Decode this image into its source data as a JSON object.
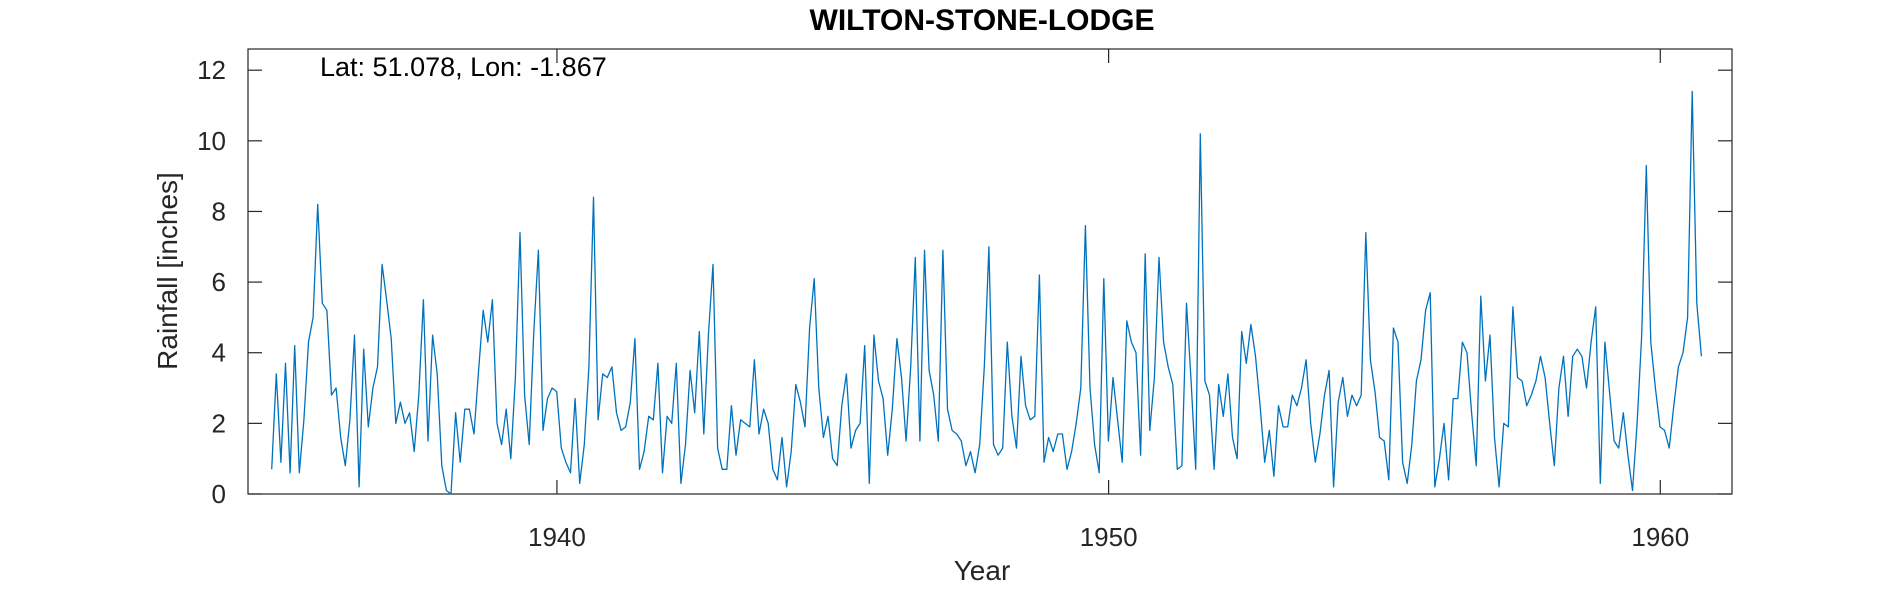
{
  "chart_data": {
    "type": "line",
    "title": "WILTON-STONE-LODGE",
    "xlabel": "Year",
    "ylabel": "Rainfall [inches]",
    "annotation": "Lat: 51.078, Lon: -1.867",
    "xlim": [
      1934.4,
      1961.3
    ],
    "ylim": [
      0,
      12.6
    ],
    "xticks": [
      1940,
      1950,
      1960
    ],
    "yticks": [
      0,
      2,
      4,
      6,
      8,
      10,
      12
    ],
    "grid": false,
    "box": true,
    "line_color": "#0072BD",
    "series": [
      {
        "x_start": 1934.83,
        "x_step": 0.08333,
        "values": [
          0.7,
          3.4,
          0.9,
          3.7,
          0.6,
          4.2,
          0.6,
          2.1,
          4.3,
          5.0,
          8.2,
          5.4,
          5.2,
          2.8,
          3.0,
          1.6,
          0.8,
          2.1,
          4.5,
          0.2,
          4.1,
          1.9,
          3.0,
          3.6,
          6.5,
          5.5,
          4.4,
          2.0,
          2.6,
          2.0,
          2.3,
          1.2,
          2.8,
          5.5,
          1.5,
          4.5,
          3.4,
          0.8,
          0.1,
          0.0,
          2.3,
          0.9,
          2.4,
          2.4,
          1.7,
          3.5,
          5.2,
          4.3,
          5.5,
          2.0,
          1.4,
          2.4,
          1.0,
          3.3,
          7.4,
          2.8,
          1.4,
          4.6,
          6.9,
          1.8,
          2.7,
          3.0,
          2.9,
          1.3,
          0.9,
          0.6,
          2.7,
          0.3,
          1.4,
          3.6,
          8.4,
          2.1,
          3.4,
          3.3,
          3.6,
          2.3,
          1.8,
          1.9,
          2.6,
          4.4,
          0.7,
          1.2,
          2.2,
          2.1,
          3.7,
          0.6,
          2.2,
          2.0,
          3.7,
          0.3,
          1.4,
          3.5,
          2.3,
          4.6,
          1.7,
          4.5,
          6.5,
          1.3,
          0.7,
          0.7,
          2.5,
          1.1,
          2.1,
          2.0,
          1.9,
          3.8,
          1.7,
          2.4,
          2.0,
          0.7,
          0.4,
          1.6,
          0.2,
          1.2,
          3.1,
          2.6,
          1.9,
          4.7,
          6.1,
          3.0,
          1.6,
          2.2,
          1.0,
          0.8,
          2.5,
          3.4,
          1.3,
          1.8,
          2.0,
          4.2,
          0.3,
          4.5,
          3.2,
          2.7,
          1.1,
          2.4,
          4.4,
          3.3,
          1.5,
          3.6,
          6.7,
          1.5,
          6.9,
          3.5,
          2.8,
          1.5,
          6.9,
          2.4,
          1.8,
          1.7,
          1.5,
          0.8,
          1.2,
          0.6,
          1.4,
          3.6,
          7.0,
          1.4,
          1.1,
          1.3,
          4.3,
          2.2,
          1.3,
          3.9,
          2.5,
          2.1,
          2.2,
          6.2,
          0.9,
          1.6,
          1.2,
          1.7,
          1.7,
          0.7,
          1.2,
          2.0,
          3.0,
          7.6,
          3.0,
          1.4,
          0.6,
          6.1,
          1.5,
          3.3,
          2.1,
          0.9,
          4.9,
          4.3,
          4.0,
          1.1,
          6.8,
          1.8,
          3.3,
          6.7,
          4.3,
          3.6,
          3.1,
          0.7,
          0.8,
          5.4,
          3.2,
          0.7,
          10.2,
          3.2,
          2.8,
          0.7,
          3.1,
          2.2,
          3.4,
          1.6,
          1.0,
          4.6,
          3.7,
          4.8,
          3.9,
          2.5,
          0.9,
          1.8,
          0.5,
          2.5,
          1.9,
          1.9,
          2.8,
          2.5,
          3.0,
          3.8,
          2.0,
          0.9,
          1.7,
          2.8,
          3.5,
          0.2,
          2.6,
          3.3,
          2.2,
          2.8,
          2.5,
          2.8,
          7.4,
          3.8,
          2.9,
          1.6,
          1.5,
          0.4,
          4.7,
          4.3,
          0.9,
          0.3,
          1.4,
          3.2,
          3.8,
          5.2,
          5.7,
          0.2,
          1.0,
          2.0,
          0.4,
          2.7,
          2.7,
          4.3,
          4.0,
          2.3,
          0.8,
          5.6,
          3.2,
          4.5,
          1.6,
          0.2,
          2.0,
          1.9,
          5.3,
          3.3,
          3.2,
          2.5,
          2.8,
          3.2,
          3.9,
          3.3,
          2.0,
          0.8,
          3.0,
          3.9,
          2.2,
          3.9,
          4.1,
          3.9,
          3.0,
          4.3,
          5.3,
          0.3,
          4.3,
          2.9,
          1.5,
          1.3,
          2.3,
          1.1,
          0.1,
          2.0,
          4.5,
          9.3,
          4.3,
          3.0,
          1.9,
          1.8,
          1.3,
          2.5,
          3.6,
          4.0,
          5.0,
          11.4,
          5.4,
          3.9
        ]
      }
    ]
  }
}
